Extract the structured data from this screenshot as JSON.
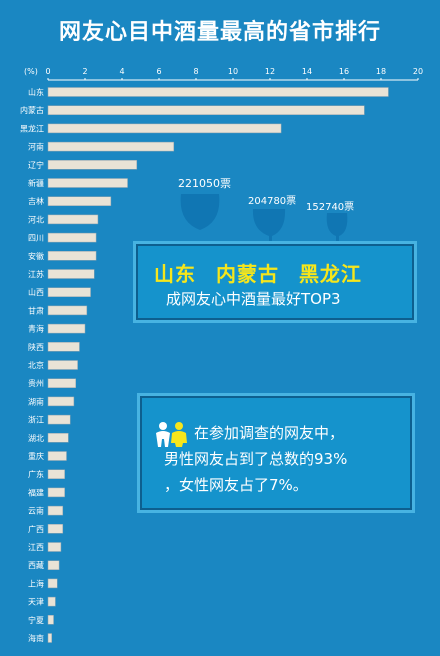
{
  "header": {
    "title": "网友心目中酒量最高的省市排行"
  },
  "chart_data": {
    "type": "bar",
    "orientation": "horizontal",
    "title": "网友心目中酒量最高的省市排行",
    "unit_label": "(%)",
    "xlim": [
      0,
      20
    ],
    "xticks": [
      0,
      2,
      4,
      6,
      8,
      10,
      12,
      14,
      16,
      18,
      20
    ],
    "categories": [
      "山东",
      "内蒙古",
      "黑龙江",
      "河南",
      "辽宁",
      "新疆",
      "吉林",
      "河北",
      "四川",
      "安徽",
      "江苏",
      "山西",
      "甘肃",
      "青海",
      "陕西",
      "北京",
      "贵州",
      "湖南",
      "浙江",
      "湖北",
      "重庆",
      "广东",
      "福建",
      "云南",
      "广西",
      "江西",
      "西藏",
      "上海",
      "天津",
      "宁夏",
      "海南"
    ],
    "values": [
      18.4,
      17.1,
      12.6,
      6.8,
      4.8,
      4.3,
      3.4,
      2.7,
      2.6,
      2.6,
      2.5,
      2.3,
      2.1,
      2.0,
      1.7,
      1.6,
      1.5,
      1.4,
      1.2,
      1.1,
      1.0,
      0.9,
      0.9,
      0.8,
      0.8,
      0.7,
      0.6,
      0.5,
      0.4,
      0.3,
      0.2
    ],
    "grid": false,
    "legend": "none"
  },
  "glasses": [
    {
      "votes": "221050票"
    },
    {
      "votes": "204780票"
    },
    {
      "votes": "152740票"
    }
  ],
  "top3": {
    "names": [
      "山东",
      "内蒙古",
      "黑龙江"
    ],
    "subtitle": "成网友心中酒量最好TOP3"
  },
  "gender": {
    "icon": "couple-icon",
    "line1": "在参加调查的网友中，",
    "line2": "男性网友占到了总数的93%",
    "line3": "，女性网友占了7%。"
  },
  "colors": {
    "background": "#1a87c2",
    "bar": "#e9e3d6",
    "bar_outline": "#8fa4b0",
    "accent": "#f6e61b",
    "glass": "#1076b3"
  }
}
